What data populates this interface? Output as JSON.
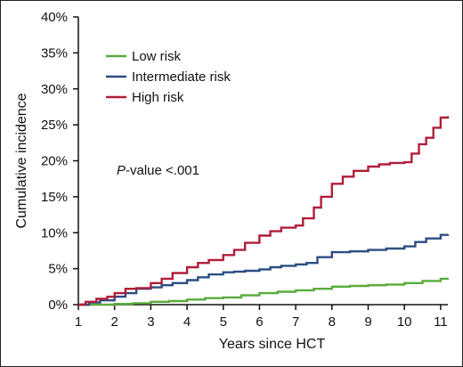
{
  "chart_data": {
    "type": "line",
    "xlabel": "Years since HCT",
    "ylabel": "Cumulative incidence",
    "xlim": [
      1,
      11.2
    ],
    "ylim": [
      0,
      40
    ],
    "x_ticks": [
      "1",
      "2",
      "3",
      "4",
      "5",
      "6",
      "7",
      "8",
      "9",
      "10",
      "11"
    ],
    "y_ticks": [
      "0%",
      "5%",
      "10%",
      "15%",
      "20%",
      "25%",
      "30%",
      "35%",
      "40%"
    ],
    "legend_position": "top-left",
    "annotation": {
      "italic": "P",
      "rest": "-value <.001"
    },
    "series": [
      {
        "name": "Low risk",
        "color": "#5aab3c",
        "x": [
          1.0,
          1.5,
          2.0,
          2.5,
          3.0,
          3.5,
          4.0,
          4.5,
          5.0,
          5.5,
          6.0,
          6.5,
          7.0,
          7.5,
          8.0,
          8.5,
          9.0,
          9.5,
          10.0,
          10.5,
          11.0,
          11.2
        ],
        "y": [
          0.0,
          0.0,
          0.1,
          0.2,
          0.4,
          0.5,
          0.7,
          0.9,
          1.0,
          1.3,
          1.6,
          1.8,
          2.0,
          2.2,
          2.5,
          2.6,
          2.7,
          2.8,
          3.0,
          3.3,
          3.6,
          3.7
        ]
      },
      {
        "name": "Intermediate risk",
        "color": "#2b4d82",
        "x": [
          1.0,
          1.3,
          1.6,
          2.0,
          2.3,
          2.6,
          3.0,
          3.3,
          3.6,
          4.0,
          4.3,
          4.6,
          5.0,
          5.3,
          5.6,
          6.0,
          6.3,
          6.6,
          7.0,
          7.3,
          7.6,
          8.0,
          8.5,
          9.0,
          9.5,
          10.0,
          10.3,
          10.6,
          11.0,
          11.2
        ],
        "y": [
          0.0,
          0.3,
          0.6,
          1.1,
          1.6,
          2.2,
          2.4,
          2.7,
          3.0,
          3.4,
          3.8,
          4.2,
          4.5,
          4.6,
          4.7,
          4.9,
          5.2,
          5.4,
          5.6,
          5.8,
          6.6,
          7.3,
          7.4,
          7.6,
          7.8,
          8.1,
          8.7,
          9.2,
          9.7,
          9.8
        ]
      },
      {
        "name": "High risk",
        "color": "#b01e3a",
        "x": [
          1.0,
          1.2,
          1.5,
          1.8,
          2.0,
          2.3,
          2.6,
          3.0,
          3.3,
          3.6,
          4.0,
          4.3,
          4.6,
          5.0,
          5.3,
          5.6,
          6.0,
          6.3,
          6.6,
          7.0,
          7.2,
          7.5,
          7.7,
          8.0,
          8.3,
          8.6,
          9.0,
          9.3,
          9.6,
          10.0,
          10.2,
          10.4,
          10.6,
          10.8,
          11.0,
          11.2
        ],
        "y": [
          0.0,
          0.4,
          0.8,
          1.1,
          1.6,
          2.2,
          2.3,
          3.0,
          3.6,
          4.4,
          5.2,
          5.8,
          6.2,
          6.9,
          7.6,
          8.6,
          9.6,
          10.2,
          10.7,
          11.0,
          12.0,
          13.5,
          15.0,
          16.8,
          17.8,
          18.6,
          19.2,
          19.5,
          19.7,
          19.8,
          21.0,
          22.3,
          23.2,
          24.6,
          26.0,
          26.2
        ]
      }
    ]
  }
}
